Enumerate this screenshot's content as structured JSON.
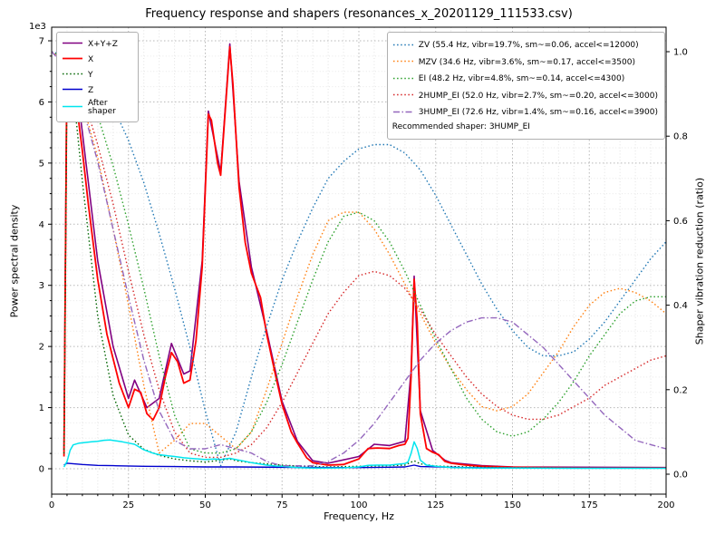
{
  "chart_data": {
    "type": "line",
    "title": "Frequency response and shapers (resonances_x_20201129_111533.csv)",
    "xlabel": "Frequency, Hz",
    "ylabel_left": "Power spectral density",
    "ylabel_right": "Shaper vibration reduction (ratio)",
    "offset_text": "1e3",
    "x_range": [
      0,
      200
    ],
    "x_major_ticks": [
      0,
      25,
      50,
      75,
      100,
      125,
      150,
      175,
      200
    ],
    "x_minor_step": 5,
    "yleft_range": [
      0,
      7000
    ],
    "yleft_scale": 1000,
    "yleft_ticks": [
      0,
      1,
      2,
      3,
      4,
      5,
      6,
      7
    ],
    "yleft_minor_step": 250,
    "yright_range": [
      0.0,
      1.0
    ],
    "yright_ticks": [
      "0.0",
      "0.2",
      "0.4",
      "0.6",
      "0.8",
      "1.0"
    ],
    "grid": "major+minor",
    "legend_right_footer": "Recommended shaper: 3HUMP_EI",
    "psd_series": [
      {
        "name": "x+y+z",
        "label": "X+Y+Z",
        "color": "#800080",
        "dash": "solid",
        "lw": 1.6,
        "f": [
          4,
          5,
          7,
          10,
          15,
          20,
          25,
          27,
          31,
          35,
          39,
          43,
          45,
          49,
          51,
          55,
          58,
          61,
          65,
          70,
          75,
          80,
          85,
          90,
          100,
          105,
          110,
          115,
          117,
          118,
          120,
          124,
          128,
          130,
          140,
          150,
          200
        ],
        "v": [
          300,
          7000,
          6700,
          5500,
          3400,
          2000,
          1150,
          1450,
          1000,
          1150,
          2050,
          1550,
          1600,
          3400,
          5850,
          4850,
          6950,
          4700,
          3300,
          2250,
          1100,
          450,
          130,
          90,
          200,
          400,
          380,
          450,
          1600,
          3150,
          950,
          300,
          140,
          100,
          50,
          30,
          20
        ]
      },
      {
        "name": "x",
        "label": "X",
        "color": "#ff0000",
        "dash": "solid",
        "lw": 1.8,
        "f": [
          4,
          5,
          6,
          7,
          8,
          10,
          12,
          15,
          18,
          20,
          22,
          25,
          27,
          29,
          31,
          33,
          35,
          37,
          39,
          41,
          43,
          45,
          47,
          49,
          51,
          52,
          54,
          55,
          57,
          58,
          59,
          61,
          63,
          65,
          68,
          70,
          73,
          75,
          78,
          80,
          83,
          85,
          90,
          95,
          100,
          103,
          106,
          110,
          113,
          115,
          116,
          117,
          118,
          119,
          120,
          122,
          124,
          126,
          128,
          130,
          135,
          140,
          150,
          160,
          180,
          200
        ],
        "v": [
          200,
          6900,
          6700,
          6400,
          6000,
          5200,
          4300,
          3100,
          2200,
          1800,
          1400,
          1000,
          1300,
          1250,
          900,
          800,
          1000,
          1500,
          1900,
          1750,
          1400,
          1450,
          2100,
          3300,
          5800,
          5700,
          5000,
          4800,
          6200,
          6900,
          6300,
          4600,
          3700,
          3200,
          2800,
          2200,
          1500,
          1050,
          600,
          420,
          180,
          100,
          60,
          70,
          160,
          330,
          340,
          330,
          380,
          400,
          500,
          1500,
          3100,
          2400,
          900,
          330,
          270,
          230,
          120,
          90,
          60,
          40,
          25,
          20,
          15,
          15
        ]
      },
      {
        "name": "y",
        "label": "Y",
        "color": "#006400",
        "dash": "dotted",
        "lw": 1.4,
        "f": [
          4,
          5,
          7,
          10,
          15,
          20,
          25,
          30,
          35,
          40,
          45,
          50,
          55,
          58,
          60,
          65,
          70,
          75,
          80,
          90,
          100,
          110,
          115,
          118,
          120,
          125,
          130,
          140,
          150,
          175,
          200
        ],
        "v": [
          250,
          6600,
          6200,
          4700,
          2500,
          1200,
          550,
          320,
          220,
          160,
          130,
          110,
          140,
          160,
          130,
          100,
          80,
          60,
          45,
          30,
          40,
          50,
          60,
          130,
          80,
          45,
          35,
          25,
          18,
          12,
          10
        ]
      },
      {
        "name": "z",
        "label": "Z",
        "color": "#0000cd",
        "dash": "solid",
        "lw": 1.4,
        "f": [
          4,
          5,
          10,
          15,
          20,
          30,
          40,
          50,
          60,
          80,
          100,
          110,
          115,
          118,
          120,
          140,
          160,
          200
        ],
        "v": [
          60,
          90,
          70,
          55,
          50,
          40,
          35,
          30,
          30,
          22,
          20,
          25,
          30,
          60,
          35,
          15,
          12,
          10
        ]
      },
      {
        "name": "after-shaper",
        "label": "After shaper",
        "color": "#00e5ee",
        "dash": "solid",
        "lw": 1.5,
        "f": [
          4,
          5,
          6,
          7,
          9,
          11,
          13,
          15,
          17,
          19,
          21,
          23,
          25,
          27,
          30,
          33,
          35,
          38,
          40,
          43,
          45,
          48,
          50,
          53,
          55,
          57,
          58,
          60,
          62,
          65,
          68,
          70,
          73,
          75,
          80,
          85,
          90,
          95,
          100,
          103,
          106,
          110,
          113,
          115,
          116,
          117,
          118,
          119,
          120,
          122,
          125,
          128,
          130,
          140,
          150,
          175,
          200
        ],
        "v": [
          30,
          120,
          300,
          390,
          420,
          430,
          440,
          450,
          465,
          470,
          455,
          440,
          420,
          400,
          310,
          255,
          230,
          210,
          200,
          180,
          170,
          160,
          150,
          160,
          150,
          165,
          170,
          150,
          130,
          100,
          75,
          60,
          45,
          40,
          20,
          10,
          10,
          15,
          30,
          55,
          60,
          60,
          75,
          85,
          110,
          250,
          440,
          330,
          140,
          60,
          40,
          30,
          20,
          12,
          10,
          8,
          8
        ]
      }
    ],
    "shaper_x": [
      0,
      5,
      10,
      15,
      20,
      25,
      30,
      35,
      40,
      45,
      50,
      55,
      60,
      65,
      70,
      75,
      80,
      85,
      90,
      95,
      100,
      105,
      110,
      115,
      120,
      125,
      130,
      135,
      140,
      145,
      150,
      155,
      160,
      165,
      170,
      175,
      180,
      185,
      190,
      195,
      200
    ],
    "shaper_series": [
      {
        "name": "zv",
        "label": "ZV (55.4 Hz, vibr=19.7%, sm~=0.06, accel<=12000)",
        "color": "#1f77b4",
        "dash": "dotted",
        "lw": 1.4,
        "r": [
          1.0,
          0.99,
          0.97,
          0.93,
          0.87,
          0.79,
          0.69,
          0.57,
          0.44,
          0.3,
          0.15,
          0.02,
          0.1,
          0.23,
          0.35,
          0.46,
          0.55,
          0.63,
          0.7,
          0.74,
          0.77,
          0.78,
          0.78,
          0.76,
          0.72,
          0.66,
          0.59,
          0.52,
          0.45,
          0.39,
          0.34,
          0.3,
          0.28,
          0.28,
          0.29,
          0.32,
          0.36,
          0.41,
          0.46,
          0.51,
          0.55
        ]
      },
      {
        "name": "mzv",
        "label": "MZV (34.6 Hz, vibr=3.6%, sm~=0.17, accel<=3500)",
        "color": "#ff7f0e",
        "dash": "dotted",
        "lw": 1.4,
        "r": [
          1.0,
          0.97,
          0.88,
          0.75,
          0.58,
          0.4,
          0.21,
          0.05,
          0.08,
          0.12,
          0.12,
          0.09,
          0.06,
          0.1,
          0.2,
          0.31,
          0.42,
          0.52,
          0.6,
          0.62,
          0.62,
          0.58,
          0.52,
          0.45,
          0.38,
          0.31,
          0.25,
          0.2,
          0.16,
          0.15,
          0.16,
          0.19,
          0.24,
          0.29,
          0.35,
          0.4,
          0.43,
          0.44,
          0.43,
          0.41,
          0.38
        ]
      },
      {
        "name": "ei",
        "label": "EI (48.2 Hz, vibr=4.8%, sm~=0.14, accel<=4300)",
        "color": "#2ca02c",
        "dash": "dotted",
        "lw": 1.4,
        "r": [
          1.0,
          0.98,
          0.93,
          0.85,
          0.73,
          0.59,
          0.44,
          0.28,
          0.14,
          0.06,
          0.05,
          0.05,
          0.06,
          0.1,
          0.17,
          0.26,
          0.36,
          0.46,
          0.55,
          0.61,
          0.62,
          0.6,
          0.55,
          0.48,
          0.4,
          0.32,
          0.25,
          0.18,
          0.13,
          0.1,
          0.09,
          0.1,
          0.13,
          0.17,
          0.22,
          0.28,
          0.33,
          0.38,
          0.41,
          0.42,
          0.42
        ]
      },
      {
        "name": "2hump-ei",
        "label": "2HUMP_EI (52.0 Hz, vibr=2.7%, sm~=0.20, accel<=3000)",
        "color": "#d62728",
        "dash": "dotted",
        "lw": 1.4,
        "r": [
          1.0,
          0.97,
          0.9,
          0.78,
          0.64,
          0.48,
          0.33,
          0.2,
          0.1,
          0.05,
          0.04,
          0.04,
          0.05,
          0.07,
          0.11,
          0.17,
          0.24,
          0.31,
          0.38,
          0.43,
          0.47,
          0.48,
          0.47,
          0.44,
          0.39,
          0.33,
          0.28,
          0.23,
          0.19,
          0.16,
          0.14,
          0.13,
          0.13,
          0.14,
          0.16,
          0.18,
          0.21,
          0.23,
          0.25,
          0.27,
          0.28
        ]
      },
      {
        "name": "3hump-ei",
        "label": "3HUMP_EI (72.6 Hz, vibr=1.4%, sm~=0.16, accel<=3900)",
        "color": "#9467bd",
        "dash": "dashdot",
        "lw": 1.4,
        "r": [
          1.0,
          0.96,
          0.87,
          0.74,
          0.58,
          0.42,
          0.27,
          0.15,
          0.08,
          0.06,
          0.06,
          0.07,
          0.06,
          0.05,
          0.03,
          0.02,
          0.02,
          0.02,
          0.03,
          0.05,
          0.08,
          0.12,
          0.17,
          0.22,
          0.27,
          0.31,
          0.34,
          0.36,
          0.37,
          0.37,
          0.36,
          0.33,
          0.3,
          0.26,
          0.22,
          0.18,
          0.14,
          0.11,
          0.08,
          0.07,
          0.06
        ]
      }
    ]
  }
}
